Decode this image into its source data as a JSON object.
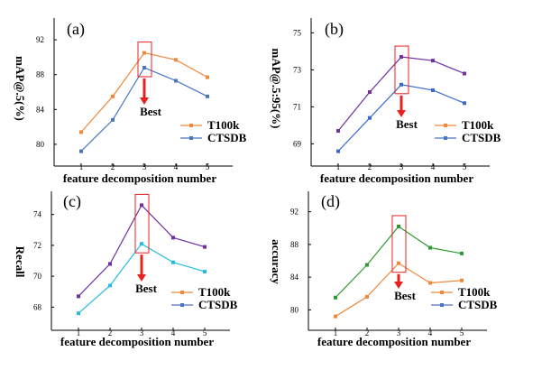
{
  "chart_data": [
    {
      "type": "line",
      "panel_label": "(a)",
      "xlabel": "feature decomposition number",
      "ylabel": "mAP@.5(%)",
      "categories": [
        "1",
        "2",
        "3",
        "4",
        "5"
      ],
      "y_ticks": [
        "80",
        "84",
        "88",
        "92"
      ],
      "ylim": [
        77.5,
        94.5
      ],
      "series": [
        {
          "name": "T100k",
          "color": "#f0883c",
          "values": [
            81.4,
            85.5,
            90.5,
            89.7,
            87.7
          ]
        },
        {
          "name": "CTSDB",
          "color": "#4a76c0",
          "values": [
            79.2,
            82.8,
            88.8,
            87.3,
            85.5
          ]
        }
      ],
      "best_label": "Best",
      "best_index": 2,
      "legend_position": "bottom-right"
    },
    {
      "type": "line",
      "panel_label": "(b)",
      "xlabel": "feature decomposition number",
      "ylabel": "mAP@.5:95(%)",
      "categories": [
        "1",
        "2",
        "3",
        "4",
        "5"
      ],
      "y_ticks": [
        "69",
        "71",
        "73",
        "75"
      ],
      "ylim": [
        67.8,
        75.8
      ],
      "series": [
        {
          "name": "T100k",
          "color": "#7030a0",
          "values": [
            69.7,
            71.8,
            73.7,
            73.5,
            72.8
          ]
        },
        {
          "name": "CTSDB",
          "color": "#3a6ad0",
          "values": [
            68.6,
            70.4,
            72.2,
            71.9,
            71.2
          ]
        }
      ],
      "legend_series": [
        {
          "name": "T100k",
          "color": "#f0883c"
        },
        {
          "name": "CTSDB",
          "color": "#4a76c0"
        }
      ],
      "best_label": "Best",
      "best_index": 2,
      "legend_position": "bottom-right"
    },
    {
      "type": "line",
      "panel_label": "(c)",
      "xlabel": "feature decomposition number",
      "ylabel": "Recall",
      "categories": [
        "1",
        "2",
        "3",
        "4",
        "5"
      ],
      "y_ticks": [
        "68",
        "70",
        "72",
        "74"
      ],
      "ylim": [
        66.5,
        75.5
      ],
      "series": [
        {
          "name": "T100k",
          "color": "#7030a0",
          "values": [
            68.7,
            70.8,
            74.6,
            72.5,
            71.9
          ]
        },
        {
          "name": "CTSDB",
          "color": "#22bde0",
          "values": [
            67.6,
            69.4,
            72.1,
            70.9,
            70.3
          ]
        }
      ],
      "legend_series": [
        {
          "name": "T100k",
          "color": "#f0883c"
        },
        {
          "name": "CTSDB",
          "color": "#4a76c0"
        }
      ],
      "best_label": "Best",
      "best_index": 2,
      "legend_position": "bottom-right"
    },
    {
      "type": "line",
      "panel_label": "(d)",
      "xlabel": "feature decomposition number",
      "ylabel": "accuracy",
      "categories": [
        "1",
        "2",
        "3",
        "4",
        "5"
      ],
      "y_ticks": [
        "80",
        "84",
        "88",
        "92"
      ],
      "ylim": [
        77.5,
        94.5
      ],
      "series": [
        {
          "name": "T100k",
          "color": "#2e9a30",
          "values": [
            81.5,
            85.5,
            90.2,
            87.6,
            86.9
          ]
        },
        {
          "name": "CTSDB",
          "color": "#f0883c",
          "values": [
            79.2,
            81.6,
            85.7,
            83.3,
            83.6
          ]
        }
      ],
      "legend_series": [
        {
          "name": "T100k",
          "color": "#f0883c"
        },
        {
          "name": "CTSDB",
          "color": "#4a76c0"
        }
      ],
      "best_label": "Best",
      "best_index": 2,
      "legend_position": "bottom-right"
    }
  ]
}
